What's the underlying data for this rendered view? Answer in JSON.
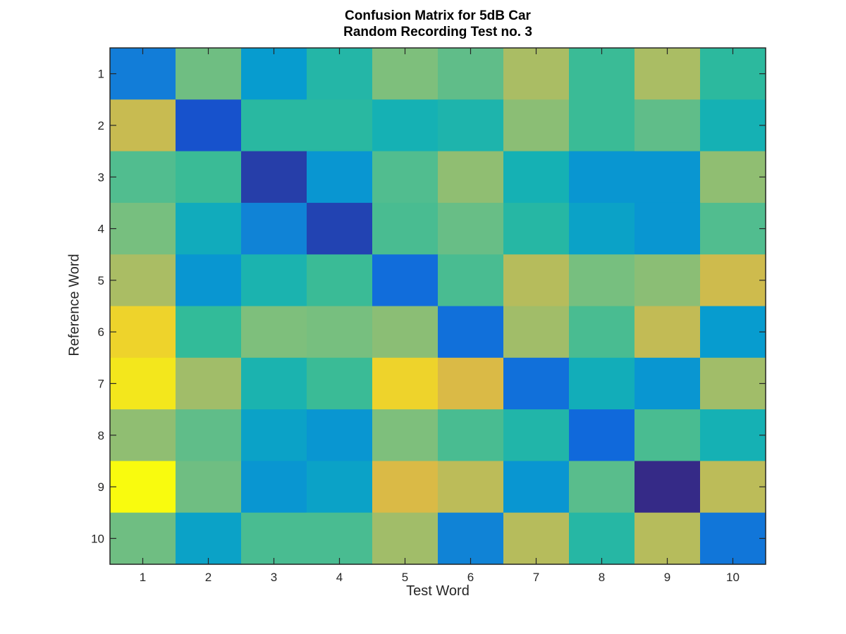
{
  "chart_data": {
    "type": "heatmap",
    "title": [
      "Confusion Matrix for 5dB Car",
      "Random Recording Test no. 3"
    ],
    "xlabel": "Test Word",
    "ylabel": "Reference Word",
    "x_ticks": [
      "1",
      "2",
      "3",
      "4",
      "5",
      "6",
      "7",
      "8",
      "9",
      "10"
    ],
    "y_ticks": [
      "1",
      "2",
      "3",
      "4",
      "5",
      "6",
      "7",
      "8",
      "9",
      "10"
    ],
    "colormap": "parula",
    "value_range": [
      0,
      1
    ],
    "grid": false,
    "values": [
      [
        0.2,
        0.66,
        0.3,
        0.45,
        0.7,
        0.62,
        0.8,
        0.52,
        0.8,
        0.48
      ],
      [
        0.85,
        0.08,
        0.47,
        0.47,
        0.4,
        0.43,
        0.73,
        0.52,
        0.62,
        0.4
      ],
      [
        0.58,
        0.52,
        0.04,
        0.28,
        0.58,
        0.74,
        0.4,
        0.28,
        0.28,
        0.74
      ],
      [
        0.68,
        0.37,
        0.22,
        0.05,
        0.56,
        0.64,
        0.46,
        0.33,
        0.28,
        0.58
      ],
      [
        0.8,
        0.28,
        0.42,
        0.52,
        0.15,
        0.56,
        0.82,
        0.68,
        0.73,
        0.86
      ],
      [
        0.94,
        0.5,
        0.7,
        0.68,
        0.73,
        0.16,
        0.78,
        0.56,
        0.84,
        0.3
      ],
      [
        0.97,
        0.78,
        0.42,
        0.52,
        0.94,
        0.88,
        0.16,
        0.38,
        0.28,
        0.78
      ],
      [
        0.74,
        0.62,
        0.33,
        0.28,
        0.7,
        0.56,
        0.44,
        0.14,
        0.56,
        0.4
      ],
      [
        1.0,
        0.66,
        0.28,
        0.33,
        0.88,
        0.83,
        0.28,
        0.6,
        0.0,
        0.83
      ],
      [
        0.66,
        0.33,
        0.56,
        0.56,
        0.78,
        0.22,
        0.82,
        0.46,
        0.82,
        0.18
      ]
    ]
  }
}
